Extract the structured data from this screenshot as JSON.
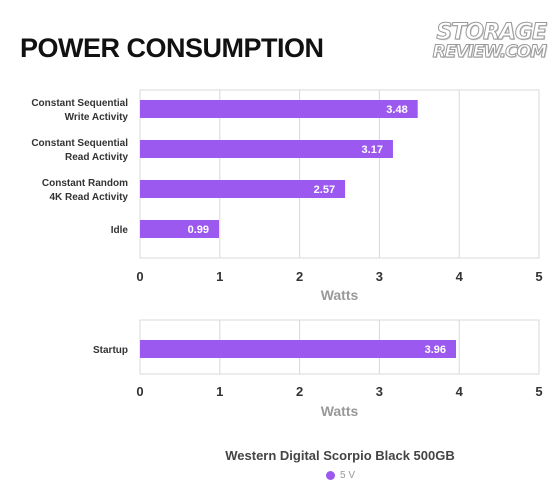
{
  "header": {
    "title": "POWER CONSUMPTION",
    "logo_line1": "STORAGE",
    "logo_line2": "REVIEW.COM"
  },
  "colors": {
    "bar": "#9b59f0",
    "bar_label": "#ffffff",
    "axis_text": "#333333",
    "axis_title": "#999999",
    "grid": "#d8d8d8"
  },
  "chart_data": [
    {
      "type": "bar",
      "orientation": "horizontal",
      "categories": [
        "Constant Sequential\nWrite Activity",
        "Constant Sequential\nRead Activity",
        "Constant Random\n4K Read Activity",
        "Idle"
      ],
      "series": [
        {
          "name": "5 V",
          "values": [
            3.48,
            3.17,
            2.57,
            0.99
          ]
        }
      ],
      "xlabel": "Watts",
      "xlim": [
        0,
        5
      ],
      "xticks": [
        0,
        1,
        2,
        3,
        4,
        5
      ],
      "grid": true
    },
    {
      "type": "bar",
      "orientation": "horizontal",
      "categories": [
        "Startup"
      ],
      "series": [
        {
          "name": "5 V",
          "values": [
            3.96
          ]
        }
      ],
      "xlabel": "Watts",
      "xlim": [
        0,
        5
      ],
      "xticks": [
        0,
        1,
        2,
        3,
        4,
        5
      ],
      "grid": true
    }
  ],
  "legend": {
    "title": "Western Digital Scorpio Black 500GB",
    "items": [
      {
        "label": "5 V",
        "color": "#9b59f0"
      }
    ]
  }
}
